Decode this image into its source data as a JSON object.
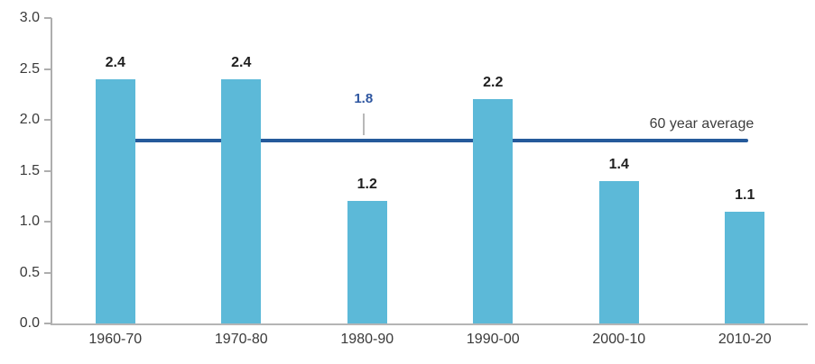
{
  "chart_data": {
    "type": "bar",
    "title": "",
    "xlabel": "",
    "ylabel": "",
    "categories": [
      "1960-70",
      "1970-80",
      "1980-90",
      "1990-00",
      "2000-10",
      "2010-20"
    ],
    "values": [
      2.4,
      2.4,
      1.2,
      2.2,
      1.4,
      1.1
    ],
    "bar_labels": [
      "2.4",
      "2.4",
      "1.2",
      "2.2",
      "1.4",
      "1.1"
    ],
    "ylim": [
      0.0,
      3.0
    ],
    "y_tick_values": [
      3.0,
      2.5,
      2.0,
      1.5,
      1.0,
      0.5,
      0.0
    ],
    "y_tick_labels": [
      "3.0",
      "2.5",
      "2.0",
      "1.5",
      "1.0",
      "0.5",
      "0.0"
    ],
    "grid": "off",
    "legend": "none",
    "average_line": {
      "value": 1.8,
      "value_label": "1.8",
      "label": "60 year average"
    },
    "colors": {
      "bar": "#5cb9d8",
      "average_line": "#255a9b",
      "average_value_label": "#2e56a0",
      "axis": "#aeaeae",
      "text": "#3a3a3a",
      "bar_label_text": "#1f1f1f"
    }
  }
}
